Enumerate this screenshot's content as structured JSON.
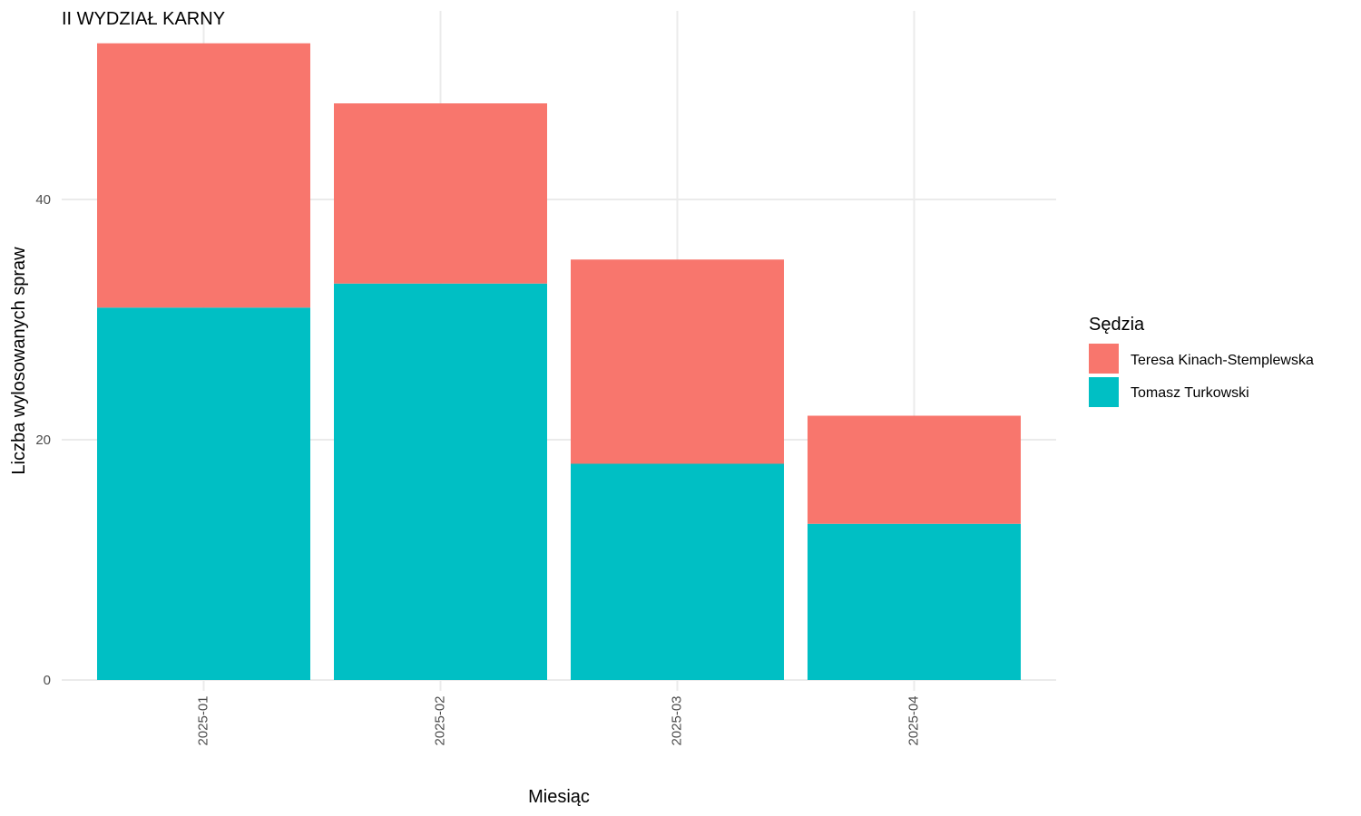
{
  "chart_data": {
    "type": "bar",
    "stacked": true,
    "title": "II WYDZIAŁ KARNY",
    "xlabel": "Miesiąc",
    "ylabel": "Liczba wylosowanych spraw",
    "categories": [
      "2025-01",
      "2025-02",
      "2025-03",
      "2025-04"
    ],
    "series": [
      {
        "name": "Tomasz Turkowski",
        "color": "#00BFC4",
        "values": [
          31,
          33,
          18,
          13
        ]
      },
      {
        "name": "Teresa Kinach-Stemplewska",
        "color": "#F8766D",
        "values": [
          22,
          15,
          17,
          9
        ]
      }
    ],
    "legend": {
      "title": "Sędzia",
      "placement": "right",
      "entries": [
        "Teresa Kinach-Stemplewska",
        "Tomasz Turkowski"
      ]
    },
    "ylim": [
      0,
      56
    ],
    "yticks": [
      0,
      20,
      40
    ],
    "grid": true
  }
}
